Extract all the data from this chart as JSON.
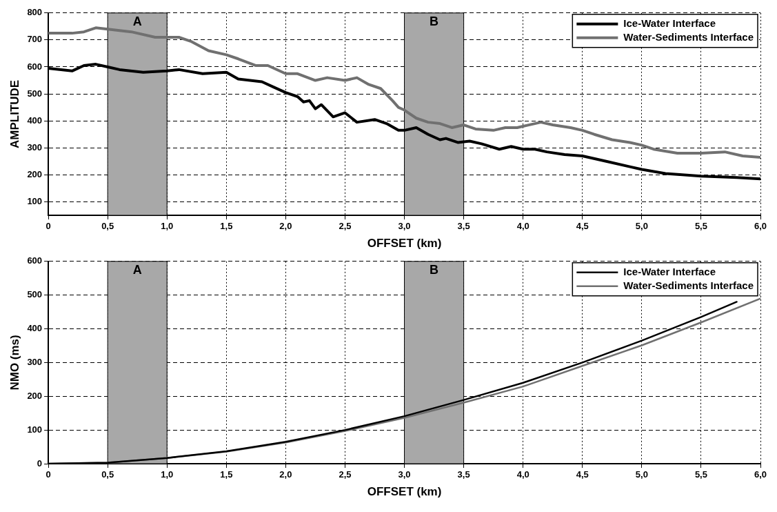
{
  "chart_data": [
    {
      "type": "line",
      "xlabel": "OFFSET (km)",
      "ylabel": "AMPLITUDE",
      "xlim": [
        0,
        6
      ],
      "xticks": [
        0,
        {
          "value": 0.5,
          "label": "0,5"
        },
        {
          "value": 1,
          "label": "1,0"
        },
        {
          "value": 1.5,
          "label": "1,5"
        },
        {
          "value": 2,
          "label": "2,0"
        },
        {
          "value": 2.5,
          "label": "2,5"
        },
        {
          "value": 3,
          "label": "3,0"
        },
        {
          "value": 3.5,
          "label": "3,5"
        },
        {
          "value": 4,
          "label": "4,0"
        },
        {
          "value": 4.5,
          "label": "4,5"
        },
        {
          "value": 5,
          "label": "5,0"
        },
        {
          "value": 5.5,
          "label": "5,5"
        },
        {
          "value": 6,
          "label": "6,0"
        }
      ],
      "ylim": [
        50,
        800
      ],
      "yticks": [
        100,
        200,
        300,
        400,
        500,
        600,
        700,
        800
      ],
      "grid": true,
      "legend": "top right",
      "line_style": "solid",
      "bands": [
        {
          "axis": "x",
          "from": 0.5,
          "to": 1,
          "label": "A",
          "color": "#a8a8a8"
        },
        {
          "axis": "x",
          "from": 3,
          "to": 3.5,
          "label": "B",
          "color": "#a8a8a8"
        }
      ],
      "series": [
        {
          "name": "Ice-Water Interface",
          "color": "#000000",
          "x": [
            0,
            0.2,
            0.3,
            0.4,
            0.5,
            0.6,
            0.8,
            1,
            1.1,
            1.3,
            1.5,
            1.6,
            1.8,
            1.9,
            2,
            2.1,
            2.15,
            2.2,
            2.25,
            2.3,
            2.4,
            2.5,
            2.6,
            2.75,
            2.85,
            2.95,
            3,
            3.1,
            3.2,
            3.3,
            3.35,
            3.45,
            3.55,
            3.65,
            3.8,
            3.9,
            4,
            4.1,
            4.2,
            4.35,
            4.5,
            4.7,
            4.9,
            5,
            5.2,
            5.5,
            5.8,
            6
          ],
          "values": [
            595,
            585,
            605,
            610,
            600,
            590,
            580,
            585,
            590,
            575,
            580,
            555,
            545,
            525,
            505,
            490,
            470,
            475,
            445,
            460,
            415,
            430,
            395,
            405,
            390,
            365,
            365,
            375,
            350,
            330,
            335,
            320,
            325,
            315,
            295,
            305,
            295,
            295,
            285,
            275,
            270,
            250,
            230,
            220,
            205,
            195,
            190,
            185
          ]
        },
        {
          "name": "Water-Sediments Interface",
          "color": "#707070",
          "x": [
            0,
            0.2,
            0.3,
            0.4,
            0.5,
            0.7,
            0.9,
            1,
            1.1,
            1.2,
            1.35,
            1.5,
            1.6,
            1.75,
            1.85,
            2,
            2.1,
            2.25,
            2.35,
            2.5,
            2.6,
            2.7,
            2.8,
            2.9,
            2.95,
            3,
            3.1,
            3.2,
            3.3,
            3.4,
            3.5,
            3.6,
            3.75,
            3.85,
            3.95,
            4,
            4.15,
            4.25,
            4.4,
            4.5,
            4.6,
            4.75,
            4.9,
            5,
            5.1,
            5.3,
            5.5,
            5.7,
            5.85,
            6
          ],
          "values": [
            725,
            725,
            730,
            745,
            740,
            730,
            710,
            710,
            710,
            695,
            660,
            645,
            630,
            605,
            605,
            575,
            575,
            550,
            560,
            550,
            560,
            535,
            520,
            475,
            450,
            440,
            410,
            395,
            390,
            375,
            385,
            370,
            365,
            375,
            375,
            380,
            395,
            385,
            375,
            365,
            350,
            330,
            320,
            310,
            295,
            280,
            280,
            285,
            270,
            265
          ]
        }
      ]
    },
    {
      "type": "line",
      "xlabel": "OFFSET (km)",
      "ylabel": "NMO (ms)",
      "xlim": [
        0,
        6
      ],
      "xticks": [
        0,
        {
          "value": 0.5,
          "label": "0,5"
        },
        {
          "value": 1,
          "label": "1,0"
        },
        {
          "value": 1.5,
          "label": "1,5"
        },
        {
          "value": 2,
          "label": "2,0"
        },
        {
          "value": 2.5,
          "label": "2,5"
        },
        {
          "value": 3,
          "label": "3,0"
        },
        {
          "value": 3.5,
          "label": "3,5"
        },
        {
          "value": 4,
          "label": "4,0"
        },
        {
          "value": 4.5,
          "label": "4,5"
        },
        {
          "value": 5,
          "label": "5,0"
        },
        {
          "value": 5.5,
          "label": "5,5"
        },
        {
          "value": 6,
          "label": "6,0"
        }
      ],
      "ylim": [
        0,
        600
      ],
      "yticks": [
        0,
        100,
        200,
        300,
        400,
        500,
        600
      ],
      "grid": true,
      "legend": "top right",
      "line_style": "solid",
      "bands": [
        {
          "axis": "x",
          "from": 0.5,
          "to": 1,
          "label": "A",
          "color": "#a8a8a8"
        },
        {
          "axis": "x",
          "from": 3,
          "to": 3.5,
          "label": "B",
          "color": "#a8a8a8"
        }
      ],
      "series": [
        {
          "name": "Ice-Water Interface",
          "color": "#000000",
          "x": [
            0,
            0.5,
            1,
            1.5,
            2,
            2.5,
            3,
            3.5,
            4,
            4.5,
            5,
            5.5,
            5.8
          ],
          "values": [
            0,
            3,
            17,
            37,
            65,
            100,
            141,
            189,
            240,
            300,
            365,
            435,
            480
          ]
        },
        {
          "name": "Water-Sediments Interface",
          "color": "#707070",
          "x": [
            0,
            0.5,
            1,
            1.5,
            2,
            2.5,
            3,
            3.5,
            4,
            4.5,
            5,
            5.5,
            6
          ],
          "values": [
            0,
            3,
            17,
            36,
            63,
            97,
            136,
            181,
            229,
            290,
            351,
            419,
            490
          ]
        }
      ]
    }
  ]
}
